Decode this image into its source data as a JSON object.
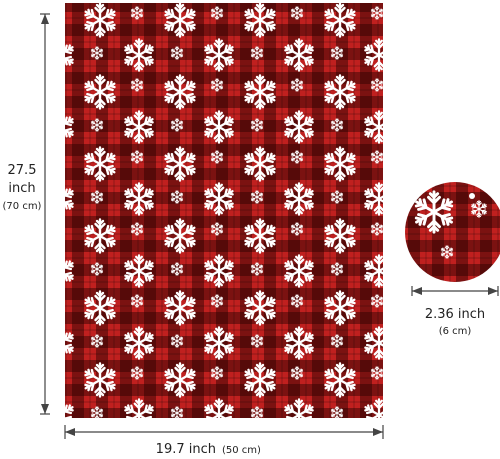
{
  "dimensions": {
    "height": {
      "value": "27.5",
      "unit": "inch",
      "metric": "(70 cm)"
    },
    "width": {
      "value": "19.7 inch",
      "metric": "(50 cm)"
    },
    "ornament": {
      "value": "2.36 inch",
      "metric": "(6 cm)"
    }
  }
}
